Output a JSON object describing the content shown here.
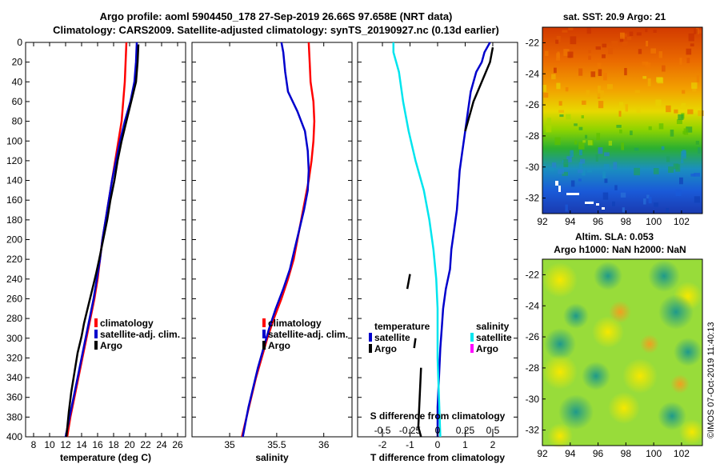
{
  "title": {
    "line1": "Argo profile: aoml 5904450_178 27-Sep-2019 26.66S 97.658E (NRT data)",
    "line2": "Climatology: CARS2009. Satellite-adjusted climatology: synTS_20190927.nc (0.13d earlier)"
  },
  "credit": "©IMOS 07-Oct-2019 11:40:13",
  "colors": {
    "climatology": "#ff0000",
    "satellite": "#0000cc",
    "argo": "#000000",
    "sal_satellite": "#00e5ee",
    "sal_argo": "#ff00ff"
  },
  "depth_axis": {
    "ticks": [
      0,
      20,
      40,
      60,
      80,
      100,
      120,
      140,
      160,
      180,
      200,
      220,
      240,
      260,
      280,
      300,
      320,
      340,
      360,
      380,
      400
    ],
    "ylim": [
      0,
      400
    ]
  },
  "chart_data": [
    {
      "id": "temperature",
      "type": "line",
      "xlabel": "temperature (deg C)",
      "xlim": [
        7,
        27
      ],
      "xticks": [
        8,
        10,
        12,
        14,
        16,
        18,
        20,
        22,
        24,
        26
      ],
      "legend": [
        "climatology",
        "satellite-adj. clim.",
        "Argo"
      ],
      "series": [
        {
          "name": "climatology",
          "color": "#ff0000",
          "points": [
            [
              19.6,
              0
            ],
            [
              19.5,
              20
            ],
            [
              19.4,
              40
            ],
            [
              19.2,
              60
            ],
            [
              19.0,
              80
            ],
            [
              18.6,
              100
            ],
            [
              18.2,
              120
            ],
            [
              17.8,
              140
            ],
            [
              17.4,
              160
            ],
            [
              17.0,
              180
            ],
            [
              16.6,
              200
            ],
            [
              16.3,
              220
            ],
            [
              16.0,
              240
            ],
            [
              15.6,
              260
            ],
            [
              15.1,
              280
            ],
            [
              14.6,
              300
            ],
            [
              14.1,
              320
            ],
            [
              13.6,
              340
            ],
            [
              13.1,
              360
            ],
            [
              12.6,
              380
            ],
            [
              12.2,
              400
            ]
          ]
        },
        {
          "name": "satellite-adj. clim.",
          "color": "#0000cc",
          "points": [
            [
              20.9,
              0
            ],
            [
              20.8,
              20
            ],
            [
              20.6,
              40
            ],
            [
              20.1,
              60
            ],
            [
              19.4,
              80
            ],
            [
              18.8,
              100
            ],
            [
              18.3,
              120
            ],
            [
              17.8,
              140
            ],
            [
              17.4,
              160
            ],
            [
              17.0,
              180
            ],
            [
              16.6,
              200
            ],
            [
              16.3,
              220
            ],
            [
              15.9,
              240
            ],
            [
              15.5,
              260
            ],
            [
              15.0,
              280
            ],
            [
              14.5,
              300
            ],
            [
              14.0,
              320
            ],
            [
              13.5,
              340
            ],
            [
              13.0,
              360
            ],
            [
              12.5,
              380
            ],
            [
              12.0,
              400
            ]
          ]
        },
        {
          "name": "Argo",
          "color": "#000000",
          "points": [
            [
              21.1,
              2
            ],
            [
              21.0,
              20
            ],
            [
              20.8,
              40
            ],
            [
              20.2,
              60
            ],
            [
              19.6,
              80
            ],
            [
              19.0,
              100
            ],
            [
              18.5,
              120
            ],
            [
              18.1,
              140
            ],
            [
              17.6,
              160
            ],
            [
              17.2,
              180
            ],
            [
              16.7,
              200
            ],
            [
              16.2,
              220
            ],
            [
              15.8,
              235
            ],
            [
              15.5,
              245
            ],
            [
              15.2,
              255
            ],
            [
              14.9,
              265
            ],
            [
              14.6,
              275
            ],
            [
              14.3,
              285
            ],
            [
              14.0,
              298
            ],
            [
              13.5,
              315
            ],
            [
              13.1,
              335
            ],
            [
              12.7,
              355
            ],
            [
              12.4,
              375
            ],
            [
              12.1,
              400
            ]
          ]
        }
      ]
    },
    {
      "id": "salinity",
      "type": "line",
      "xlabel": "salinity",
      "xlim": [
        34.6,
        36.3
      ],
      "xticks": [
        35,
        35.5,
        36
      ],
      "xticklabels": [
        "35",
        "35.5",
        "36"
      ],
      "legend": [
        "climatology",
        "satellite-adj. clim.",
        "Argo"
      ],
      "series": [
        {
          "name": "climatology",
          "color": "#ff0000",
          "points": [
            [
              35.84,
              0
            ],
            [
              35.85,
              20
            ],
            [
              35.86,
              40
            ],
            [
              35.89,
              60
            ],
            [
              35.9,
              80
            ],
            [
              35.89,
              100
            ],
            [
              35.87,
              120
            ],
            [
              35.84,
              140
            ],
            [
              35.8,
              160
            ],
            [
              35.76,
              180
            ],
            [
              35.72,
              200
            ],
            [
              35.68,
              220
            ],
            [
              35.62,
              240
            ],
            [
              35.55,
              260
            ],
            [
              35.47,
              280
            ],
            [
              35.4,
              300
            ],
            [
              35.34,
              320
            ],
            [
              35.28,
              340
            ],
            [
              35.23,
              360
            ],
            [
              35.18,
              380
            ],
            [
              35.13,
              400
            ]
          ]
        },
        {
          "name": "satellite-adj. clim.",
          "color": "#0000cc",
          "points": [
            [
              35.55,
              0
            ],
            [
              35.57,
              10
            ],
            [
              35.59,
              30
            ],
            [
              35.62,
              50
            ],
            [
              35.72,
              70
            ],
            [
              35.8,
              90
            ],
            [
              35.83,
              110
            ],
            [
              35.84,
              130
            ],
            [
              35.83,
              150
            ],
            [
              35.79,
              170
            ],
            [
              35.74,
              190
            ],
            [
              35.69,
              210
            ],
            [
              35.64,
              230
            ],
            [
              35.57,
              250
            ],
            [
              35.49,
              270
            ],
            [
              35.42,
              290
            ],
            [
              35.36,
              310
            ],
            [
              35.3,
              330
            ],
            [
              35.25,
              350
            ],
            [
              35.2,
              370
            ],
            [
              35.14,
              400
            ]
          ]
        }
      ]
    },
    {
      "id": "difference",
      "type": "line",
      "xlabel": "T difference from climatology",
      "xlim": [
        -2.9,
        2.9
      ],
      "xticks": [
        -2,
        -1,
        0,
        1,
        2
      ],
      "top_label": "S difference from climatology",
      "top_ticks": [
        -0.5,
        -0.25,
        0,
        0.25,
        0.5
      ],
      "top_ticklabels": [
        "-0.5",
        "-0.25",
        "0",
        "0.25",
        "0.5"
      ],
      "top_xlim": [
        -0.725,
        0.725
      ],
      "legend_left": {
        "title": "temperature",
        "items": [
          "satellite",
          "Argo"
        ]
      },
      "legend_right": {
        "title": "salinity",
        "items": [
          "satellite",
          "Argo"
        ]
      },
      "series": [
        {
          "name": "T satellite",
          "color": "#0000cc",
          "points": [
            [
              1.9,
              0
            ],
            [
              1.7,
              10
            ],
            [
              1.6,
              20
            ],
            [
              1.4,
              30
            ],
            [
              1.2,
              50
            ],
            [
              1.1,
              70
            ],
            [
              1.0,
              90
            ],
            [
              0.9,
              110
            ],
            [
              0.8,
              130
            ],
            [
              0.75,
              150
            ],
            [
              0.7,
              170
            ],
            [
              0.6,
              190
            ],
            [
              0.5,
              210
            ],
            [
              0.45,
              230
            ],
            [
              0.3,
              250
            ],
            [
              0.2,
              270
            ],
            [
              0.15,
              290
            ],
            [
              0.1,
              310
            ],
            [
              0.05,
              340
            ],
            [
              0.0,
              370
            ],
            [
              0.0,
              400
            ]
          ]
        },
        {
          "name": "T Argo",
          "color": "#000000",
          "points": [
            [
              2.0,
              5
            ],
            [
              1.9,
              20
            ],
            [
              1.6,
              40
            ],
            [
              1.3,
              60
            ],
            [
              1.2,
              70
            ],
            [
              1.0,
              90
            ]
          ]
        },
        {
          "name": "T Argo deep",
          "color": "#000000",
          "points": [
            [
              -1.0,
              235
            ],
            [
              -1.1,
              250
            ]
          ]
        },
        {
          "name": "T Argo deep 2",
          "color": "#000000",
          "points": [
            [
              -0.8,
              300
            ],
            [
              -0.85,
              310
            ]
          ]
        },
        {
          "name": "T Argo deep 3",
          "color": "#000000",
          "points": [
            [
              -0.6,
              330
            ],
            [
              -0.65,
              360
            ],
            [
              -0.7,
              390
            ],
            [
              -0.6,
              400
            ]
          ]
        },
        {
          "name": "S satellite",
          "color": "#00e5ee",
          "points": [
            [
              -1.6,
              0
            ],
            [
              -1.6,
              10
            ],
            [
              -1.4,
              30
            ],
            [
              -1.25,
              60
            ],
            [
              -1.05,
              90
            ],
            [
              -0.8,
              120
            ],
            [
              -0.5,
              150
            ],
            [
              -0.3,
              180
            ],
            [
              -0.15,
              210
            ],
            [
              -0.05,
              240
            ],
            [
              0.0,
              270
            ],
            [
              0.0,
              320
            ],
            [
              0.05,
              360
            ],
            [
              0.1,
              400
            ]
          ]
        }
      ]
    },
    {
      "id": "sst_map",
      "type": "heatmap",
      "title": "sat. SST: 20.9 Argo: 21",
      "xticks": [
        92,
        94,
        96,
        98,
        100,
        102
      ],
      "yticks": [
        -22,
        -24,
        -26,
        -28,
        -30,
        -32
      ],
      "xlim": [
        92,
        103.5
      ],
      "ylim": [
        -21,
        -33
      ]
    },
    {
      "id": "sla_map",
      "type": "heatmap",
      "title1": "Altim. SLA: 0.053",
      "title2": "Argo h1000: NaN h2000: NaN",
      "xticks": [
        92,
        94,
        96,
        98,
        100,
        102
      ],
      "yticks": [
        -22,
        -24,
        -26,
        -28,
        -30,
        -32
      ],
      "xlim": [
        92,
        103.5
      ],
      "ylim": [
        -21,
        -33
      ]
    }
  ]
}
